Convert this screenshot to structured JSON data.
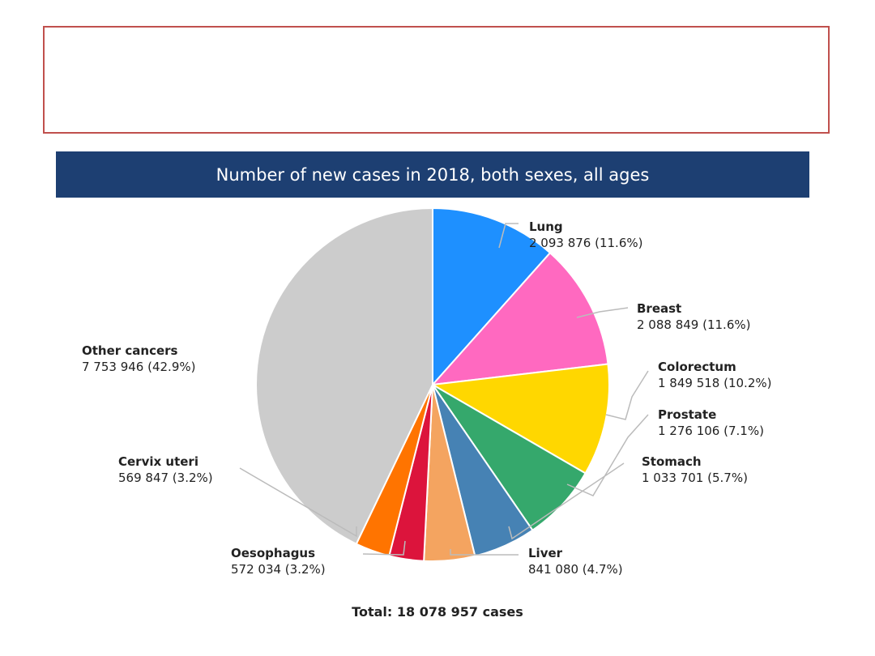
{
  "chart_data": {
    "type": "pie",
    "title": "Number of new cases in 2018, both sexes, all ages",
    "total_label": "Total: 18 078 957 cases",
    "slices": [
      {
        "name": "Lung",
        "value": 2093876,
        "label": "2 093 876 (11.6%)",
        "color": "#1e90ff"
      },
      {
        "name": "Breast",
        "value": 2088849,
        "label": "2 088 849 (11.6%)",
        "color": "#ff69c0"
      },
      {
        "name": "Colorectum",
        "value": 1849518,
        "label": "1 849 518 (10.2%)",
        "color": "#ffd700"
      },
      {
        "name": "Prostate",
        "value": 1276106,
        "label": "1 276 106 (7.1%)",
        "color": "#35a86c"
      },
      {
        "name": "Stomach",
        "value": 1033701,
        "label": "1 033 701 (5.7%)",
        "color": "#4682b4"
      },
      {
        "name": "Liver",
        "value": 841080,
        "label": "841 080 (4.7%)",
        "color": "#f4a460"
      },
      {
        "name": "Oesophagus",
        "value": 572034,
        "label": "572 034 (3.2%)",
        "color": "#dc143c"
      },
      {
        "name": "Cervix uteri",
        "value": 569847,
        "label": "569 847 (3.2%)",
        "color": "#ff7400"
      },
      {
        "name": "Other cancers",
        "value": 7753946,
        "label": "7 753 946 (42.9%)",
        "color": "#cccccc"
      }
    ]
  }
}
